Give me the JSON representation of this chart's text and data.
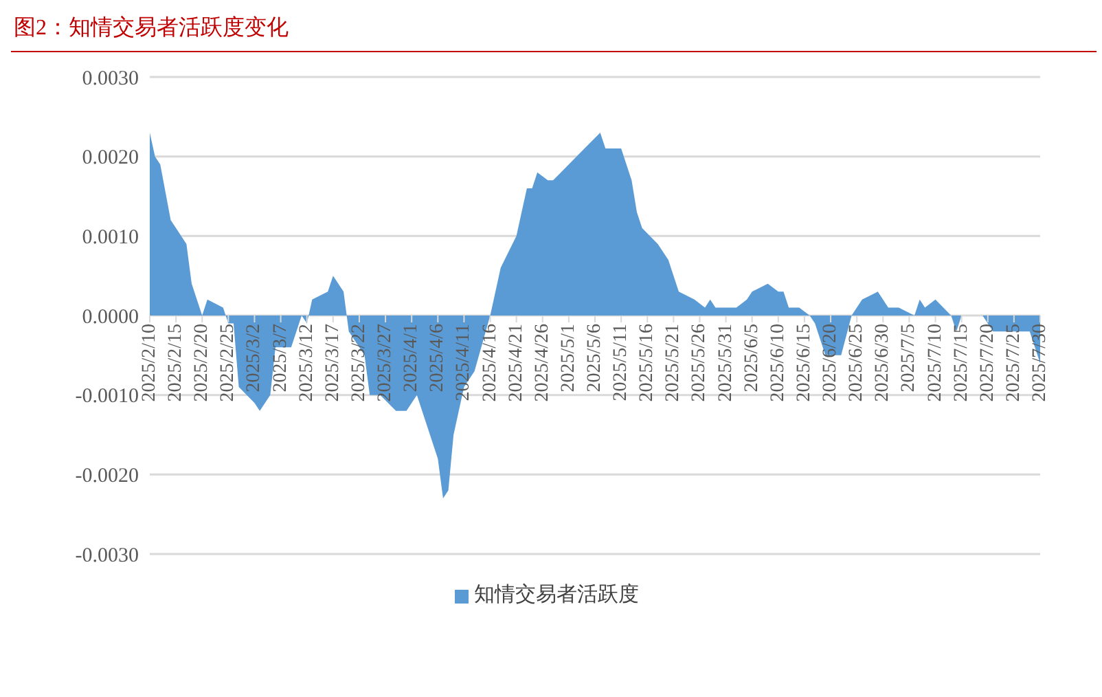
{
  "chart_data": {
    "type": "area",
    "title": "图2：知情交易者活跃度变化",
    "x": [
      "2025-02-10",
      "2025-02-11",
      "2025-02-12",
      "2025-02-14",
      "2025-02-17",
      "2025-02-18",
      "2025-02-20",
      "2025-02-21",
      "2025-02-24",
      "2025-02-25",
      "2025-02-26",
      "2025-02-27",
      "2025-03-02",
      "2025-03-03",
      "2025-03-05",
      "2025-03-06",
      "2025-03-09",
      "2025-03-11",
      "2025-03-12",
      "2025-03-13",
      "2025-03-16",
      "2025-03-17",
      "2025-03-19",
      "2025-03-20",
      "2025-03-23",
      "2025-03-24",
      "2025-03-26",
      "2025-03-29",
      "2025-03-31",
      "2025-04-02",
      "2025-04-04",
      "2025-04-06",
      "2025-04-07",
      "2025-04-08",
      "2025-04-09",
      "2025-04-11",
      "2025-04-13",
      "2025-04-16",
      "2025-04-18",
      "2025-04-21",
      "2025-04-23",
      "2025-04-24",
      "2025-04-25",
      "2025-04-27",
      "2025-04-28",
      "2025-05-04",
      "2025-05-07",
      "2025-05-08",
      "2025-05-11",
      "2025-05-13",
      "2025-05-14",
      "2025-05-15",
      "2025-05-18",
      "2025-05-19",
      "2025-05-20",
      "2025-05-22",
      "2025-05-25",
      "2025-05-27",
      "2025-05-28",
      "2025-05-29",
      "2025-06-02",
      "2025-06-04",
      "2025-06-05",
      "2025-06-08",
      "2025-06-10",
      "2025-06-11",
      "2025-06-12",
      "2025-06-14",
      "2025-06-16",
      "2025-06-17",
      "2025-06-19",
      "2025-06-22",
      "2025-06-24",
      "2025-06-26",
      "2025-06-29",
      "2025-07-01",
      "2025-07-03",
      "2025-07-06",
      "2025-07-07",
      "2025-07-08",
      "2025-07-10",
      "2025-07-13",
      "2025-07-14",
      "2025-07-15",
      "2025-07-18",
      "2025-07-19",
      "2025-07-21",
      "2025-07-22",
      "2025-07-25",
      "2025-07-28",
      "2025-07-30"
    ],
    "series": [
      {
        "name": "知情交易者活跃度",
        "color": "#5b9bd5",
        "values": [
          0.0023,
          0.002,
          0.0019,
          0.0012,
          0.0009,
          0.0004,
          0,
          0.0002,
          0.0001,
          -0.0001,
          -0.0001,
          -0.0009,
          -0.0011,
          -0.0012,
          -0.001,
          -0.0004,
          -0.0004,
          0,
          -0.0001,
          0.0002,
          0.0003,
          0.0005,
          0.0003,
          -0.0002,
          -0.0005,
          -0.001,
          -0.001,
          -0.0012,
          -0.0012,
          -0.001,
          -0.0014,
          -0.0018,
          -0.0023,
          -0.0022,
          -0.0015,
          -0.0009,
          -0.0007,
          0,
          0.0006,
          0.001,
          0.0016,
          0.0016,
          0.0018,
          0.0017,
          0.0017,
          0.0021,
          0.0023,
          0.0021,
          0.0021,
          0.0017,
          0.0013,
          0.0011,
          0.0009,
          0.0008,
          0.0007,
          0.0003,
          0.0002,
          0.0001,
          0.0002,
          0.0001,
          0.0001,
          0.0002,
          0.0003,
          0.0004,
          0.0003,
          0.0003,
          0.0001,
          0.0001,
          0,
          -0.0001,
          -0.0005,
          -0.0005,
          0,
          0.0002,
          0.0003,
          0.0001,
          0.0001,
          0,
          0.0002,
          0.0001,
          0.0002,
          0,
          -0.0002,
          0,
          0,
          0,
          -0.0002,
          -0.0002,
          -0.0002,
          -0.0002,
          -0.0006
        ]
      }
    ],
    "xlim": [
      "2025-02-10",
      "2025-07-30"
    ],
    "xticks": [
      {
        "value": "2025-02-10",
        "label": "2025/2/10"
      },
      {
        "value": "2025-02-15",
        "label": "2025/2/15"
      },
      {
        "value": "2025-02-20",
        "label": "2025/2/20"
      },
      {
        "value": "2025-02-25",
        "label": "2025/2/25"
      },
      {
        "value": "2025-03-02",
        "label": "2025/3/2"
      },
      {
        "value": "2025-03-07",
        "label": "2025/3/7"
      },
      {
        "value": "2025-03-12",
        "label": "2025/3/12"
      },
      {
        "value": "2025-03-17",
        "label": "2025/3/17"
      },
      {
        "value": "2025-03-22",
        "label": "2025/3/22"
      },
      {
        "value": "2025-03-27",
        "label": "2025/3/27"
      },
      {
        "value": "2025-04-01",
        "label": "2025/4/1"
      },
      {
        "value": "2025-04-06",
        "label": "2025/4/6"
      },
      {
        "value": "2025-04-11",
        "label": "2025/4/11"
      },
      {
        "value": "2025-04-16",
        "label": "2025/4/16"
      },
      {
        "value": "2025-04-21",
        "label": "2025/4/21"
      },
      {
        "value": "2025-04-26",
        "label": "2025/4/26"
      },
      {
        "value": "2025-05-01",
        "label": "2025/5/1"
      },
      {
        "value": "2025-05-06",
        "label": "2025/5/6"
      },
      {
        "value": "2025-05-11",
        "label": "2025/5/11"
      },
      {
        "value": "2025-05-16",
        "label": "2025/5/16"
      },
      {
        "value": "2025-05-21",
        "label": "2025/5/21"
      },
      {
        "value": "2025-05-26",
        "label": "2025/5/26"
      },
      {
        "value": "2025-05-31",
        "label": "2025/5/31"
      },
      {
        "value": "2025-06-05",
        "label": "2025/6/5"
      },
      {
        "value": "2025-06-10",
        "label": "2025/6/10"
      },
      {
        "value": "2025-06-15",
        "label": "2025/6/15"
      },
      {
        "value": "2025-06-20",
        "label": "2025/6/20"
      },
      {
        "value": "2025-06-25",
        "label": "2025/6/25"
      },
      {
        "value": "2025-06-30",
        "label": "2025/6/30"
      },
      {
        "value": "2025-07-05",
        "label": "2025/7/5"
      },
      {
        "value": "2025-07-10",
        "label": "2025/7/10"
      },
      {
        "value": "2025-07-15",
        "label": "2025/7/15"
      },
      {
        "value": "2025-07-20",
        "label": "2025/7/20"
      },
      {
        "value": "2025-07-25",
        "label": "2025/7/25"
      },
      {
        "value": "2025-07-30",
        "label": "2025/7/30"
      }
    ],
    "ylim": [
      -0.003,
      0.003
    ],
    "yticks": [
      {
        "value": -0.003,
        "label": "-0.0030"
      },
      {
        "value": -0.002,
        "label": "-0.0020"
      },
      {
        "value": -0.001,
        "label": "-0.0010"
      },
      {
        "value": 0,
        "label": "0.0000"
      },
      {
        "value": 0.001,
        "label": "0.0010"
      },
      {
        "value": 0.002,
        "label": "0.0020"
      },
      {
        "value": 0.003,
        "label": "0.0030"
      }
    ],
    "grid": "y",
    "legend": "bottom"
  }
}
